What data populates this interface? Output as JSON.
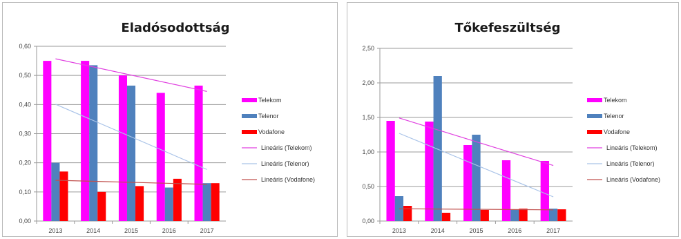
{
  "chart_data": [
    {
      "type": "bar",
      "title": "Eladósodottság",
      "categories": [
        "2013",
        "2014",
        "2015",
        "2016",
        "2017"
      ],
      "ylim": [
        0,
        0.6
      ],
      "yticks": [
        "0,00",
        "0,10",
        "0,20",
        "0,30",
        "0,40",
        "0,50",
        "0,60"
      ],
      "grid": true,
      "legend_position": "right",
      "series": [
        {
          "name": "Telekom",
          "color": "#ff00ff",
          "values": [
            0.55,
            0.55,
            0.5,
            0.44,
            0.465
          ]
        },
        {
          "name": "Telenor",
          "color": "#4f81bd",
          "values": [
            0.2,
            0.535,
            0.465,
            0.115,
            0.13
          ]
        },
        {
          "name": "Vodafone",
          "color": "#ff0000",
          "values": [
            0.17,
            0.1,
            0.12,
            0.145,
            0.13
          ]
        }
      ],
      "trendlines": [
        {
          "name": "Lineáris (Telekom)",
          "color": "#e040e0"
        },
        {
          "name": "Lineáris (Telenor)",
          "color": "#a9c3e8"
        },
        {
          "name": "Lineáris (Vodafone)",
          "color": "#c0504d"
        }
      ]
    },
    {
      "type": "bar",
      "title": "Tőkefeszültség",
      "categories": [
        "2013",
        "2014",
        "2015",
        "2016",
        "2017"
      ],
      "ylim": [
        0,
        2.5
      ],
      "yticks": [
        "0,00",
        "0,50",
        "1,00",
        "1,50",
        "2,00",
        "2,50"
      ],
      "grid": true,
      "legend_position": "right",
      "series": [
        {
          "name": "Telekom",
          "color": "#ff00ff",
          "values": [
            1.45,
            1.44,
            1.1,
            0.88,
            0.87
          ]
        },
        {
          "name": "Telenor",
          "color": "#4f81bd",
          "values": [
            0.36,
            2.1,
            1.25,
            0.16,
            0.18
          ]
        },
        {
          "name": "Vodafone",
          "color": "#ff0000",
          "values": [
            0.22,
            0.12,
            0.16,
            0.18,
            0.17
          ]
        }
      ],
      "trendlines": [
        {
          "name": "Lineáris (Telekom)",
          "color": "#e040e0"
        },
        {
          "name": "Lineáris (Telenor)",
          "color": "#a9c3e8"
        },
        {
          "name": "Lineáris (Vodafone)",
          "color": "#c0504d"
        }
      ]
    }
  ]
}
